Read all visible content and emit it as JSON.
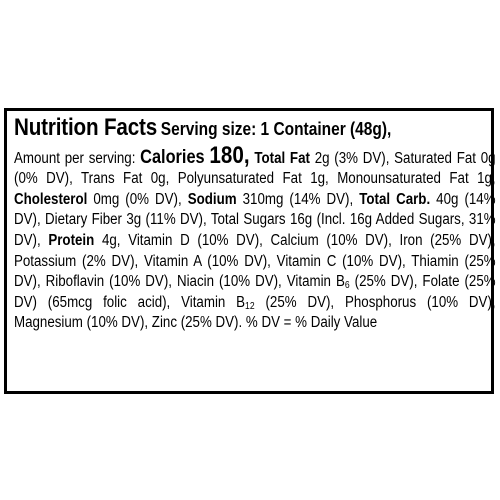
{
  "label": {
    "title": "Nutrition Facts",
    "serving_size": "Serving size: 1 Container (48g),",
    "amount_per_serving": "Amount per serving:",
    "calories_label": "Calories",
    "calories_value": "180,",
    "total_fat_label": "Total Fat",
    "total_fat_value": "2g (3% DV),",
    "saturated_fat": "Saturated Fat 0g (0% DV),",
    "trans_fat": "Trans Fat 0g,",
    "polyunsaturated_fat": "Polyunsaturated Fat 1g,",
    "monounsaturated_fat": "Monounsaturated Fat 1g,",
    "cholesterol_label": "Cholesterol",
    "cholesterol_value": "0mg (0% DV),",
    "sodium_label": "Sodium",
    "sodium_value": "310mg (14% DV),",
    "total_carb_label": "Total Carb.",
    "total_carb_value": "40g (14% DV),",
    "dietary_fiber": "Dietary Fiber 3g (11% DV),",
    "total_sugars": "Total Sugars 16g (Incl. 16g Added Sugars, 31% DV),",
    "protein_label": "Protein",
    "protein_value": "4g,",
    "vitamin_d": "Vitamin D (10% DV),",
    "calcium": "Calcium (10% DV),",
    "iron": "Iron (25% DV),",
    "potassium": "Potassium (2% DV),",
    "vitamin_a": "Vitamin A (10% DV),",
    "vitamin_c": "Vitamin C (10% DV),",
    "thiamin": "Thiamin (25% DV),",
    "riboflavin": "Riboflavin (10% DV),",
    "niacin": "Niacin (10% DV),",
    "vitamin_b6_prefix": "Vitamin B",
    "vitamin_b6_sub": "6",
    "vitamin_b6_suffix": "(25% DV),",
    "folate": "Folate (25% DV) (65mcg folic acid),",
    "vitamin_b12_prefix": "Vitamin B",
    "vitamin_b12_sub": "12",
    "vitamin_b12_suffix": "(25% DV),",
    "phosphorus": "Phosphorus (10% DV),",
    "magnesium": "Magnesium (10% DV),",
    "zinc": "Zinc (25% DV).",
    "footnote": "% DV = % Daily Value"
  }
}
